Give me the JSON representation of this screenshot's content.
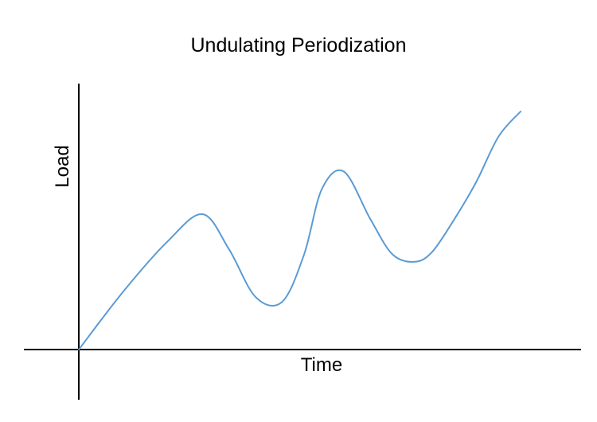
{
  "chart_data": {
    "type": "line",
    "title": "Undulating Periodization",
    "xlabel": "Time",
    "ylabel": "Load",
    "xlim": [
      0,
      100
    ],
    "ylim": [
      -20,
      100
    ],
    "grid": false,
    "legend": "none",
    "series": [
      {
        "color": "#5b9bd5",
        "x": [
          0,
          10,
          20,
          28,
          34,
          40,
          46,
          51,
          55,
          60,
          66,
          71,
          76,
          80,
          85,
          90,
          95,
          100
        ],
        "y": [
          0,
          23,
          43,
          54,
          40,
          21,
          19,
          38,
          64,
          71,
          52,
          38,
          35,
          39,
          52,
          67,
          85,
          95
        ]
      }
    ]
  }
}
